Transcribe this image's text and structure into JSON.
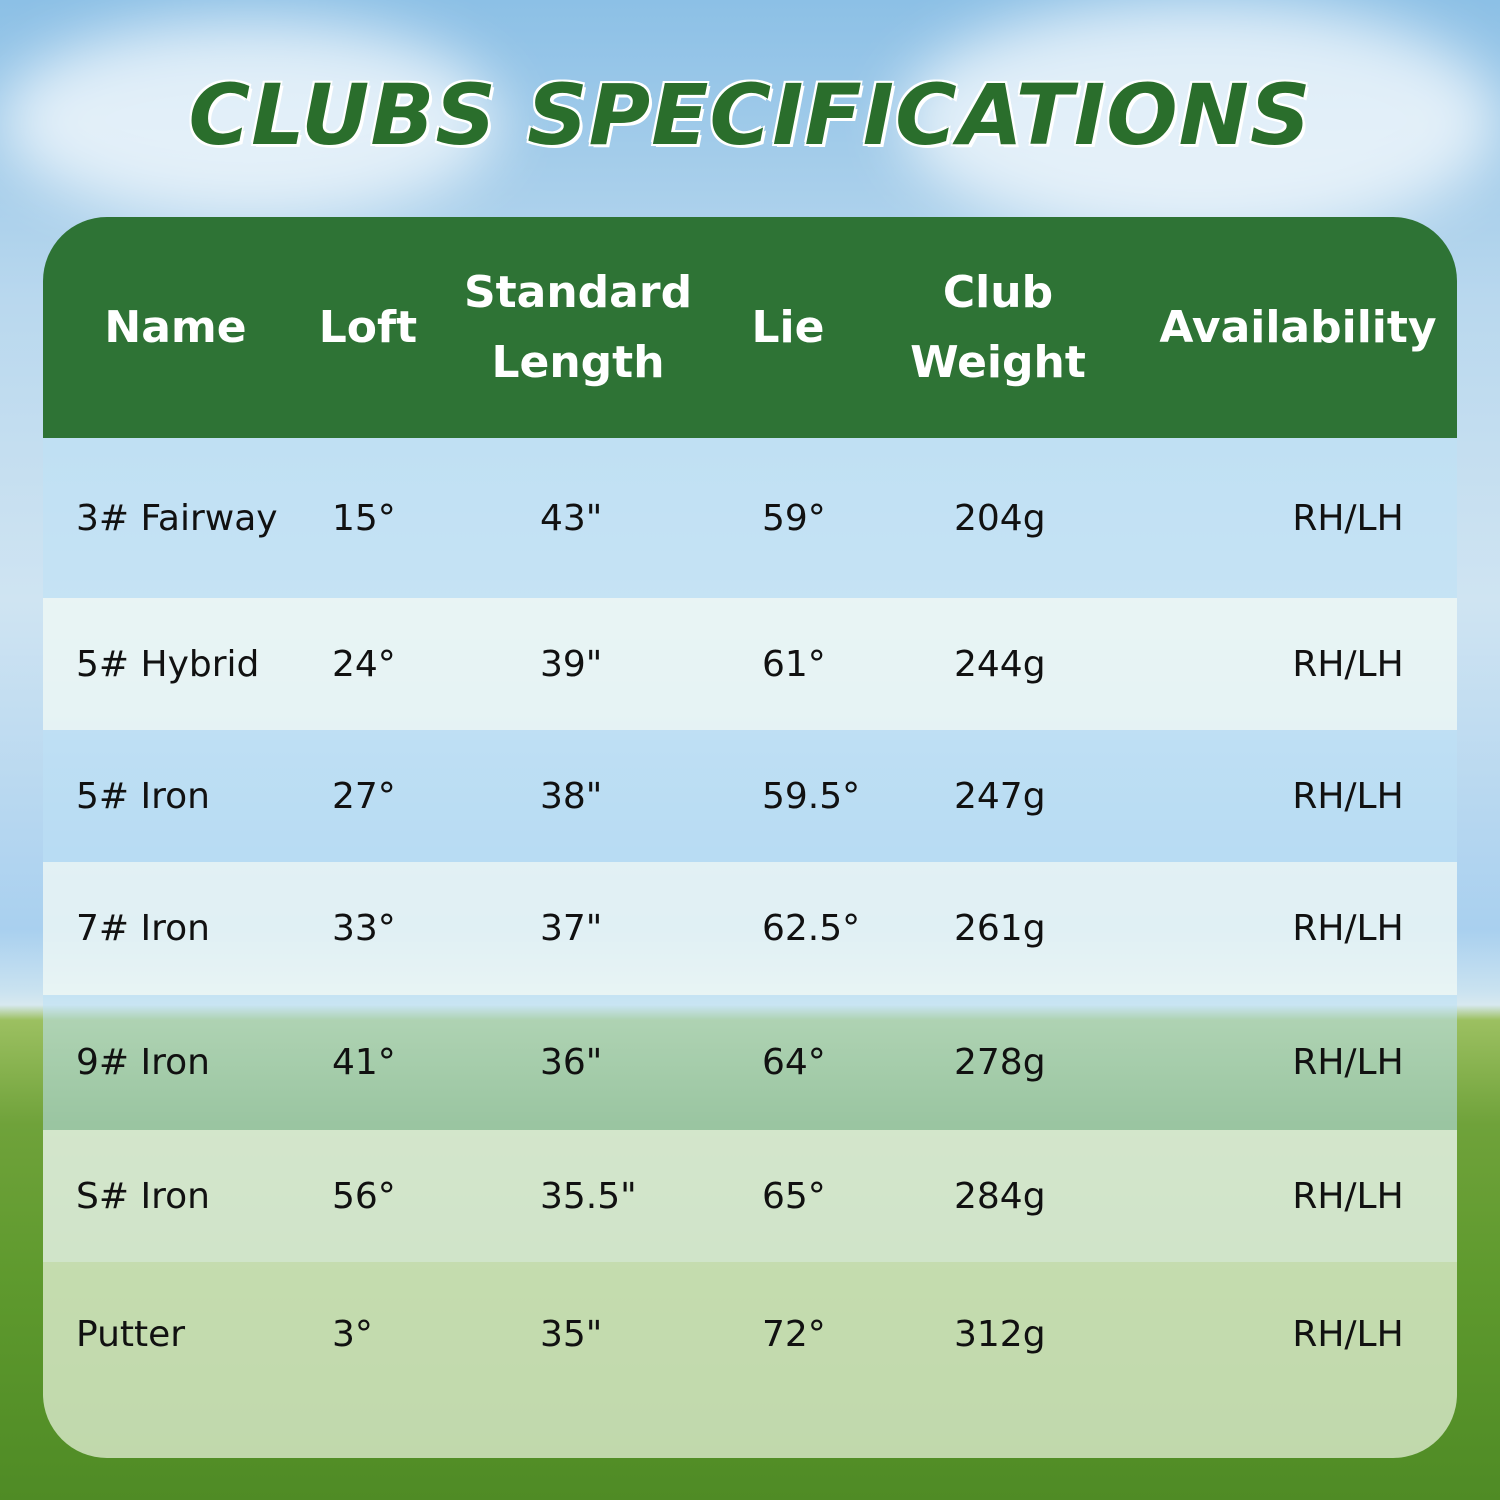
{
  "title": "CLUBS SPECIFICATIONS",
  "colors": {
    "header_bg": "#2e7335",
    "title": "#2a6e2c"
  },
  "table": {
    "headers": [
      "Name",
      "Loft",
      "Standard Length",
      "Lie",
      "Club Weight",
      "Availability"
    ],
    "rows": [
      [
        "3# Fairway",
        "15°",
        "43\"",
        "59°",
        "204g",
        "RH/LH"
      ],
      [
        "5# Hybrid",
        "24°",
        "39\"",
        "61°",
        "244g",
        "RH/LH"
      ],
      [
        "5# Iron",
        "27°",
        "38\"",
        "59.5°",
        "247g",
        "RH/LH"
      ],
      [
        "7# Iron",
        "33°",
        "37\"",
        "62.5°",
        "261g",
        "RH/LH"
      ],
      [
        "9# Iron",
        "41°",
        "36\"",
        "64°",
        "278g",
        "RH/LH"
      ],
      [
        "S# Iron",
        "56°",
        "35.5\"",
        "65°",
        "284g",
        "RH/LH"
      ],
      [
        "Putter",
        "3°",
        "35\"",
        "72°",
        "312g",
        "RH/LH"
      ]
    ]
  }
}
